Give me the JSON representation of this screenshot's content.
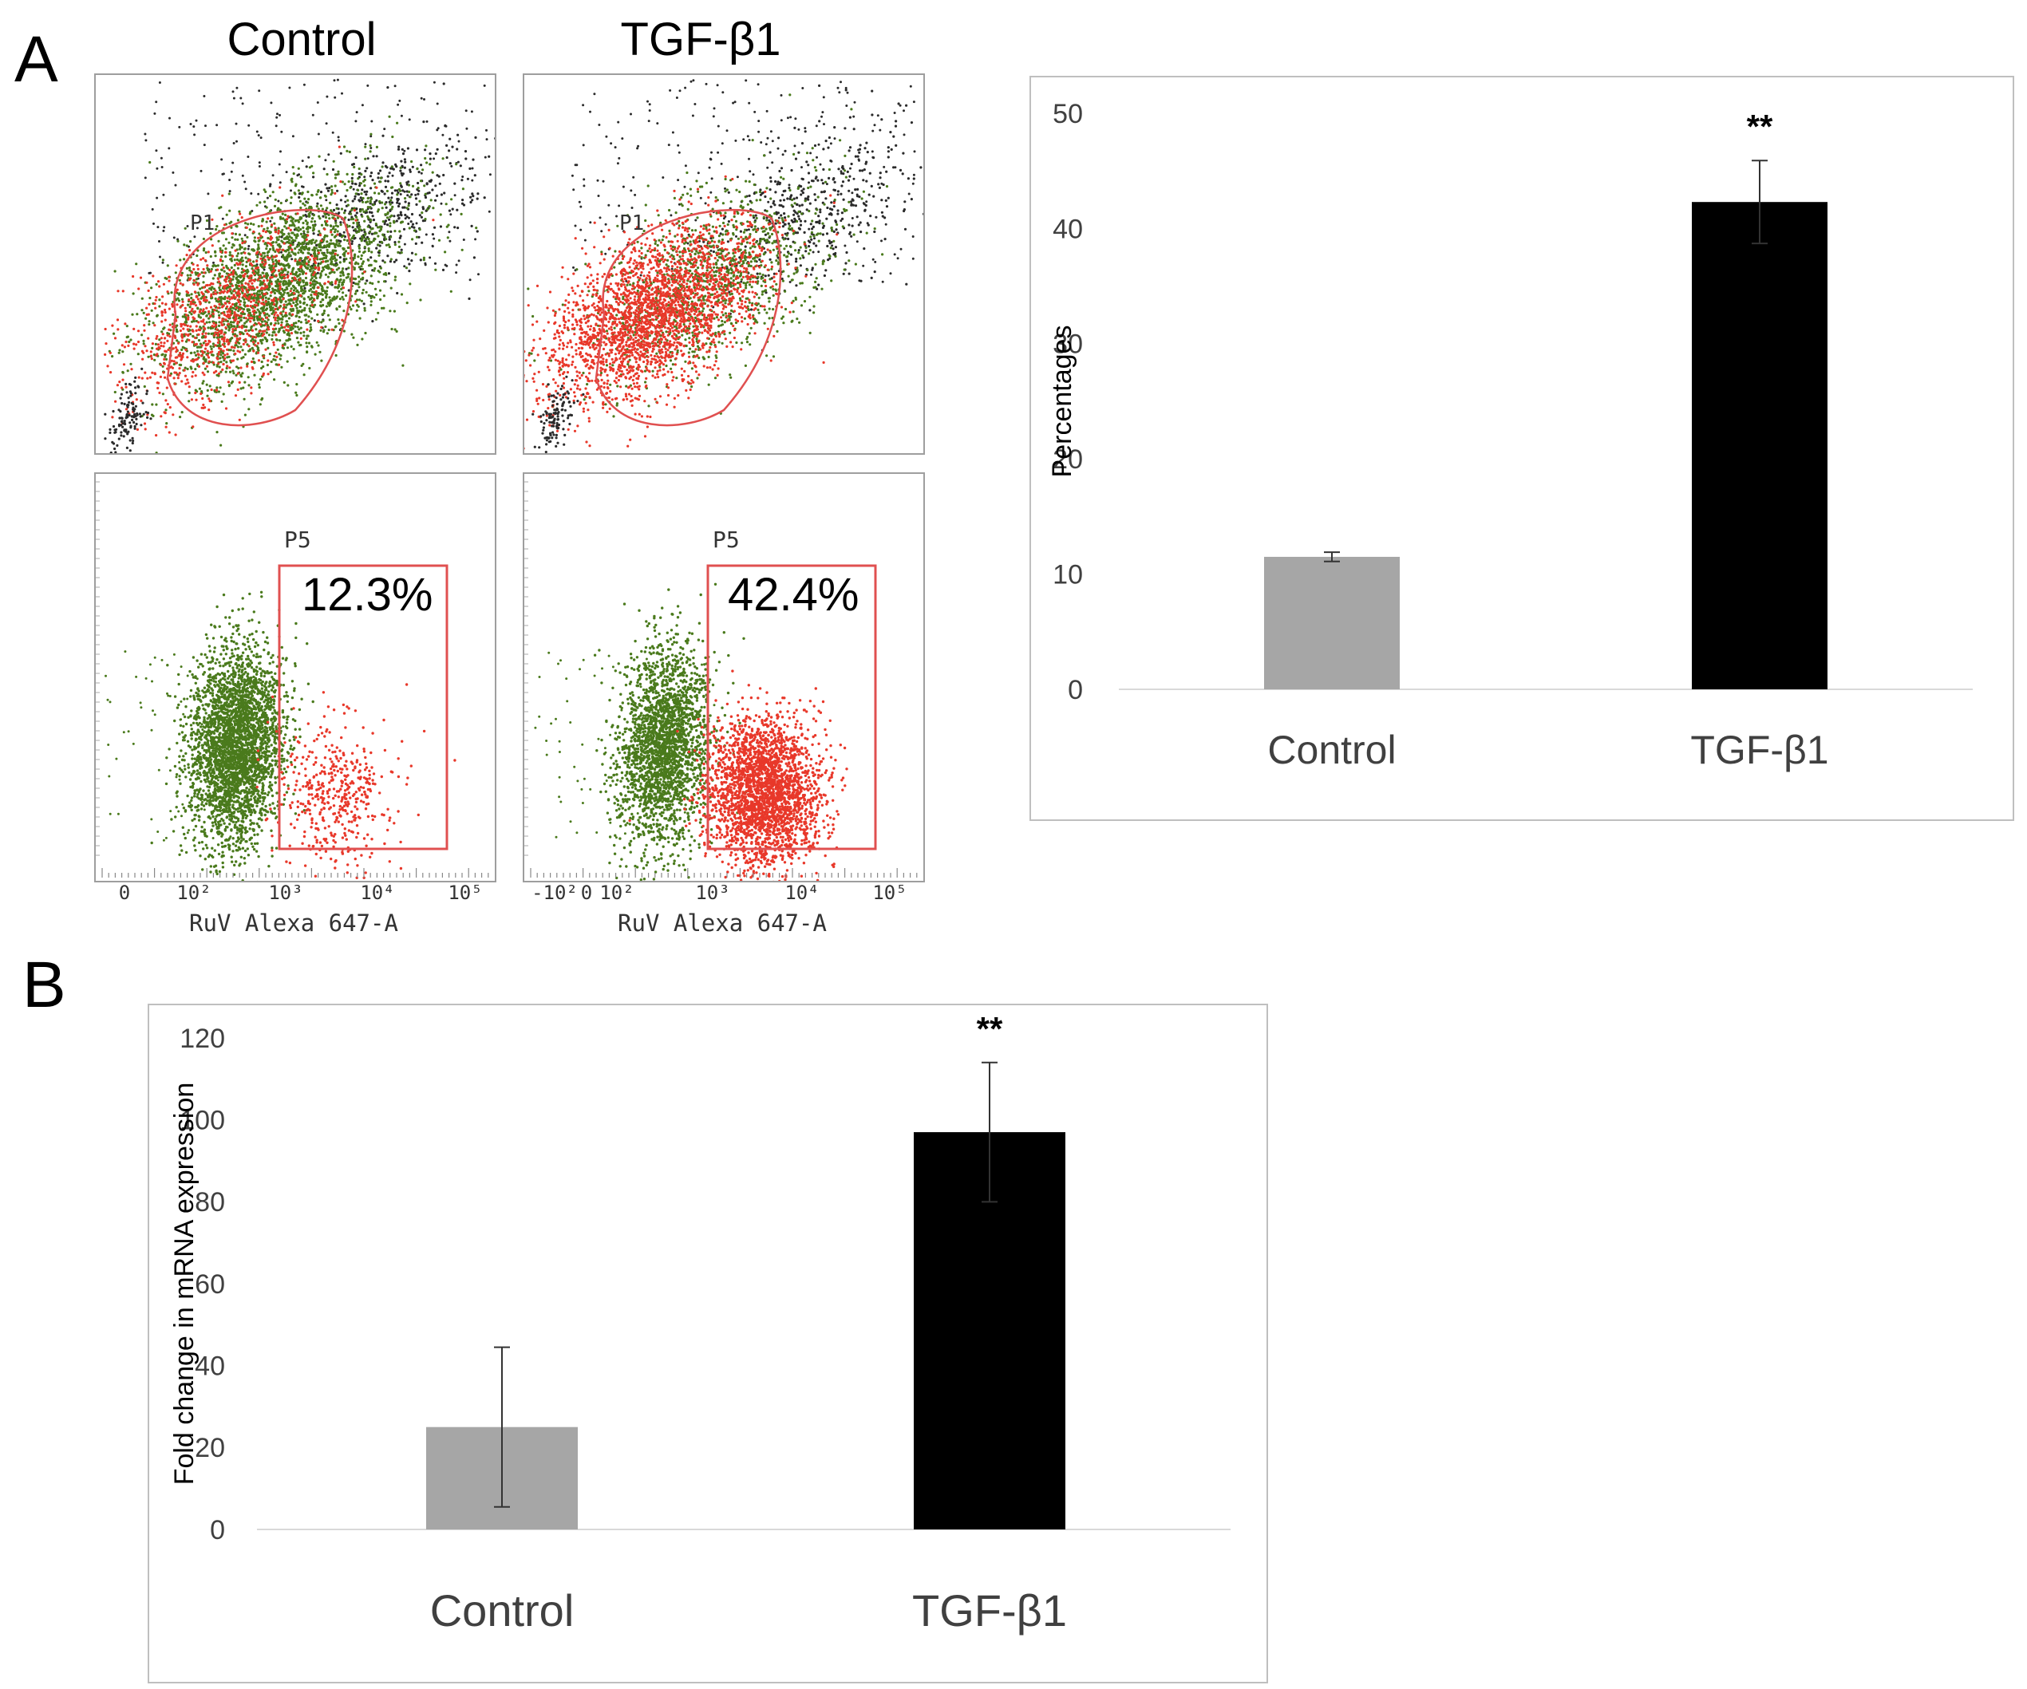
{
  "panel_labels": {
    "a": "A",
    "b": "B"
  },
  "flow": {
    "col_titles": [
      "Control",
      "TGF-β1"
    ],
    "gate_upper": "P1",
    "gate_lower": "P5",
    "percentages": [
      "12.3%",
      "42.4%"
    ],
    "x_axis_label": "RuV Alexa 647-A",
    "x_ticks_control": [
      "0",
      "10²",
      "10³",
      "10⁴",
      "10⁵"
    ],
    "x_ticks_tgf": [
      "-10²",
      "0",
      "10²",
      "10³",
      "10⁴",
      "10⁵"
    ],
    "colors": {
      "red": "#e8382a",
      "green": "#4a7a1c",
      "dark": "#2b2b2b",
      "gate": "#e05050"
    }
  },
  "chart_data": [
    {
      "type": "bar",
      "title": "",
      "categories": [
        "Control",
        "TGF-β1"
      ],
      "values": [
        11.5,
        42.3
      ],
      "error": [
        0.4,
        3.6
      ],
      "colors": [
        "#a6a6a6",
        "#000000"
      ],
      "ylabel": "Percentages",
      "ylim": [
        0,
        50
      ],
      "yticks": [
        0,
        10,
        20,
        30,
        40,
        50
      ],
      "annotation": {
        "category": "TGF-β1",
        "text": "**"
      }
    },
    {
      "type": "bar",
      "title": "",
      "categories": [
        "Control",
        "TGF-β1"
      ],
      "values": [
        25,
        97
      ],
      "error": [
        19.5,
        17
      ],
      "colors": [
        "#a6a6a6",
        "#000000"
      ],
      "ylabel": "Fold change in mRNA expression",
      "ylim": [
        0,
        120
      ],
      "yticks": [
        0,
        20,
        40,
        60,
        80,
        100,
        120
      ],
      "annotation": {
        "category": "TGF-β1",
        "text": "**"
      }
    }
  ]
}
